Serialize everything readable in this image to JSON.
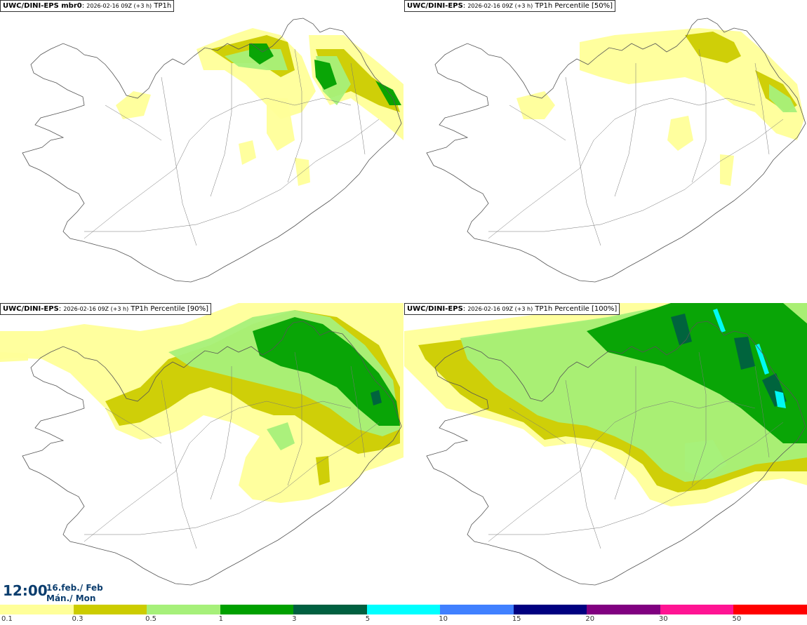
{
  "panels": [
    {
      "model": "UWC/DINI-EPS mbr0",
      "run": "2026-02-16 09Z (+3 h)",
      "field": "TP1h"
    },
    {
      "model": "UWC/DINI-EPS",
      "run": "2026-02-16 09Z (+3 h)",
      "field": "TP1h Percentile [50%]"
    },
    {
      "model": "UWC/DINI-EPS",
      "run": "2026-02-16 09Z (+3 h)",
      "field": "TP1h Percentile [90%]"
    },
    {
      "model": "UWC/DINI-EPS",
      "run": "2026-02-16 09Z (+3 h)",
      "field": "TP1h Percentile [100%]"
    }
  ],
  "valid_time": {
    "time": "12:00",
    "date_line1": "16.feb./ Feb",
    "date_line2": "Mán./ Mon"
  },
  "legend": {
    "colors": [
      "#ffff99",
      "#cccc00",
      "#a6f07a",
      "#00a000",
      "#006040",
      "#00ffff",
      "#4080ff",
      "#000080",
      "#800080",
      "#ff1493",
      "#ff0000"
    ],
    "ticks": [
      "0.1",
      "0.3",
      "0.5",
      "1",
      "3",
      "5",
      "10",
      "15",
      "20",
      "30",
      "50"
    ]
  }
}
